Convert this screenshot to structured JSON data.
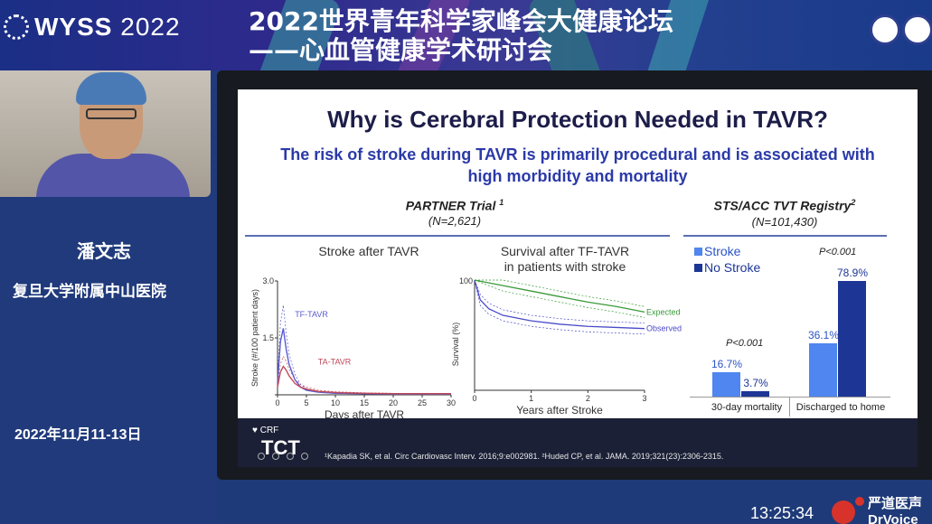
{
  "header": {
    "logo": "WYSS 2022",
    "logo_main": "WYSS",
    "logo_year": "2022",
    "title_line1": "2022世界青年科学家峰会大健康论坛",
    "title_line2": "——心血管健康学术研讨会"
  },
  "speaker": {
    "name": "潘文志",
    "organization": "复旦大学附属中山医院"
  },
  "event_date": "2022年11月11-13日",
  "slide": {
    "title": "Why is Cerebral Protection Needed in TAVR?",
    "subtitle": "The risk of stroke during TAVR is primarily procedural and is associated with high morbidity and mortality",
    "partner": {
      "heading": "PARTNER Trial",
      "heading_sup": "1",
      "n": "(N=2,621)"
    },
    "registry": {
      "heading": "STS/ACC TVT Registry",
      "heading_sup": "2",
      "n": "(N=101,430)"
    },
    "footer": {
      "brand_small": "CRF",
      "brand_large": "TCT",
      "references": "¹Kapadia SK, et al. Circ Cardiovasc Interv. 2016;9:e002981. ²Huded CP, et al. JAMA. 2019;321(23):2306-2315."
    }
  },
  "chart_data": [
    {
      "type": "line",
      "title": "Stroke after TAVR",
      "xlabel": "Days after TAVR",
      "ylabel": "Stroke (#/100 patient days)",
      "x_ticks": [
        0,
        5,
        10,
        15,
        20,
        25,
        30
      ],
      "y_ticks": [
        0,
        1.5,
        3.0
      ],
      "y_tick_labels": [
        "",
        "1.5",
        "3.0"
      ],
      "xlim": [
        0,
        30
      ],
      "ylim": [
        0,
        3.0
      ],
      "series": [
        {
          "name": "TF-TAVR",
          "color": "#5a5ad0",
          "x": [
            0,
            0.5,
            1,
            1.5,
            2,
            3,
            4,
            5,
            7,
            10,
            15,
            20,
            25,
            30
          ],
          "y": [
            0.3,
            1.4,
            1.75,
            1.2,
            0.8,
            0.4,
            0.2,
            0.12,
            0.07,
            0.04,
            0.03,
            0.02,
            0.02,
            0.02
          ]
        },
        {
          "name": "TA-TAVR",
          "color": "#c04a5a",
          "x": [
            0,
            0.5,
            1,
            1.5,
            2,
            3,
            4,
            5,
            7,
            10,
            15,
            20,
            25,
            30
          ],
          "y": [
            0.2,
            0.6,
            0.75,
            0.65,
            0.5,
            0.3,
            0.2,
            0.15,
            0.09,
            0.06,
            0.04,
            0.03,
            0.03,
            0.03
          ]
        }
      ]
    },
    {
      "type": "line",
      "title": "Survival after TF-TAVR in patients with stroke",
      "title_line1": "Survival after TF-TAVR",
      "title_line2": "in patients with stroke",
      "xlabel": "Years after Stroke",
      "ylabel": "Survival (%)",
      "x_ticks": [
        0,
        1,
        2,
        3
      ],
      "y_ticks": [
        100
      ],
      "xlim": [
        0,
        3
      ],
      "ylim": [
        0,
        100
      ],
      "series": [
        {
          "name": "Expected",
          "color": "#3a9a3a",
          "x": [
            0,
            0.5,
            1,
            1.5,
            2,
            2.5,
            3
          ],
          "y": [
            100,
            95,
            90,
            85,
            80,
            76,
            71
          ]
        },
        {
          "name": "Observed",
          "color": "#4a4ac8",
          "x": [
            0,
            0.1,
            0.25,
            0.5,
            1,
            1.5,
            2,
            2.5,
            3
          ],
          "y": [
            100,
            82,
            74,
            68,
            63,
            60,
            58,
            57,
            56
          ]
        }
      ]
    },
    {
      "type": "bar",
      "title": "STS/ACC TVT Registry",
      "categories": [
        "30-day mortality",
        "Discharged to home"
      ],
      "series": [
        {
          "name": "Stroke",
          "color": "#4f86f0",
          "values": [
            16.7,
            36.1
          ],
          "labels": [
            "16.7%",
            "36.1%"
          ]
        },
        {
          "name": "No Stroke",
          "color": "#1d3696",
          "values": [
            3.7,
            78.9
          ],
          "labels": [
            "3.7%",
            "78.9%"
          ]
        }
      ],
      "p_values": [
        "P<0.001",
        "P<0.001"
      ],
      "ylim": [
        0,
        80
      ]
    }
  ],
  "status": {
    "clock": "13:25:34",
    "brand": "严道医声",
    "brand_sub": "DrVoice"
  }
}
